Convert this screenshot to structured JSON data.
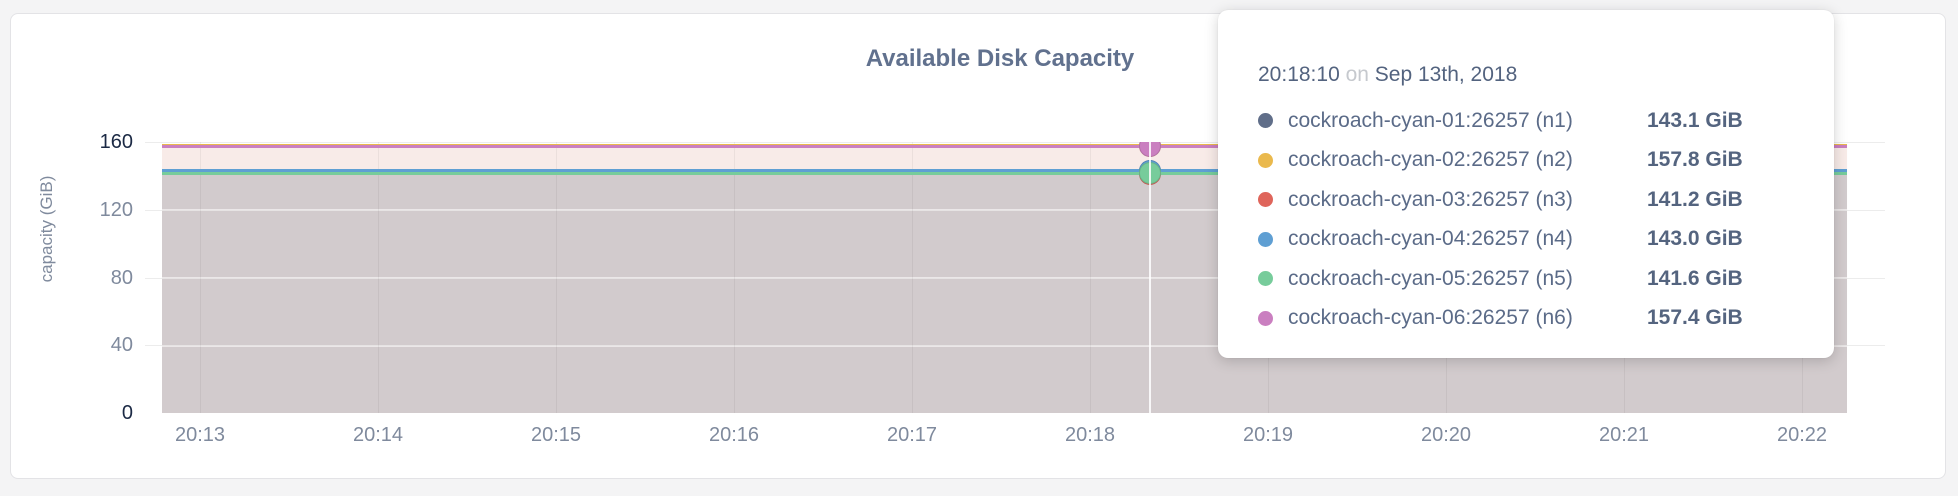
{
  "tooltip": {
    "time": "20:18:10",
    "connector": "on",
    "date": "Sep 13th, 2018",
    "rows": [
      {
        "name": "cockroach-cyan-01:26257 (n1)",
        "value": "143.1 GiB",
        "color": "#606e89"
      },
      {
        "name": "cockroach-cyan-02:26257 (n2)",
        "value": "157.8 GiB",
        "color": "#eab94d"
      },
      {
        "name": "cockroach-cyan-03:26257 (n3)",
        "value": "141.2 GiB",
        "color": "#df655b"
      },
      {
        "name": "cockroach-cyan-04:26257 (n4)",
        "value": "143.0 GiB",
        "color": "#5f9fd3"
      },
      {
        "name": "cockroach-cyan-05:26257 (n5)",
        "value": "141.6 GiB",
        "color": "#77cc9b"
      },
      {
        "name": "cockroach-cyan-06:26257 (n6)",
        "value": "157.4 GiB",
        "color": "#ca7fc0"
      }
    ]
  },
  "chart_data": {
    "type": "line",
    "title": "Available Disk Capacity",
    "xlabel": "",
    "ylabel": "capacity (GiB)",
    "unit": "GiB",
    "ylim": [
      0,
      160
    ],
    "y_ticks": [
      0,
      40,
      80,
      120,
      160
    ],
    "x_ticks": [
      "20:13",
      "20:14",
      "20:15",
      "20:16",
      "20:17",
      "20:18",
      "20:19",
      "20:20",
      "20:21",
      "20:22"
    ],
    "grid": true,
    "legend_position": "tooltip",
    "hover_point": {
      "time": "20:18:10",
      "date": "Sep 13th, 2018"
    },
    "series": [
      {
        "name": "cockroach-cyan-01:26257 (n1)",
        "color": "#606e89",
        "value_gib": 143.1
      },
      {
        "name": "cockroach-cyan-02:26257 (n2)",
        "color": "#eab94d",
        "value_gib": 157.8
      },
      {
        "name": "cockroach-cyan-03:26257 (n3)",
        "color": "#df655b",
        "value_gib": 141.2
      },
      {
        "name": "cockroach-cyan-04:26257 (n4)",
        "color": "#5f9fd3",
        "value_gib": 143.0
      },
      {
        "name": "cockroach-cyan-05:26257 (n5)",
        "color": "#77cc9b",
        "value_gib": 141.6
      },
      {
        "name": "cockroach-cyan-06:26257 (n6)",
        "color": "#ca7fc0",
        "value_gib": 157.4
      }
    ],
    "note": "flat horizontal series across full x range"
  }
}
